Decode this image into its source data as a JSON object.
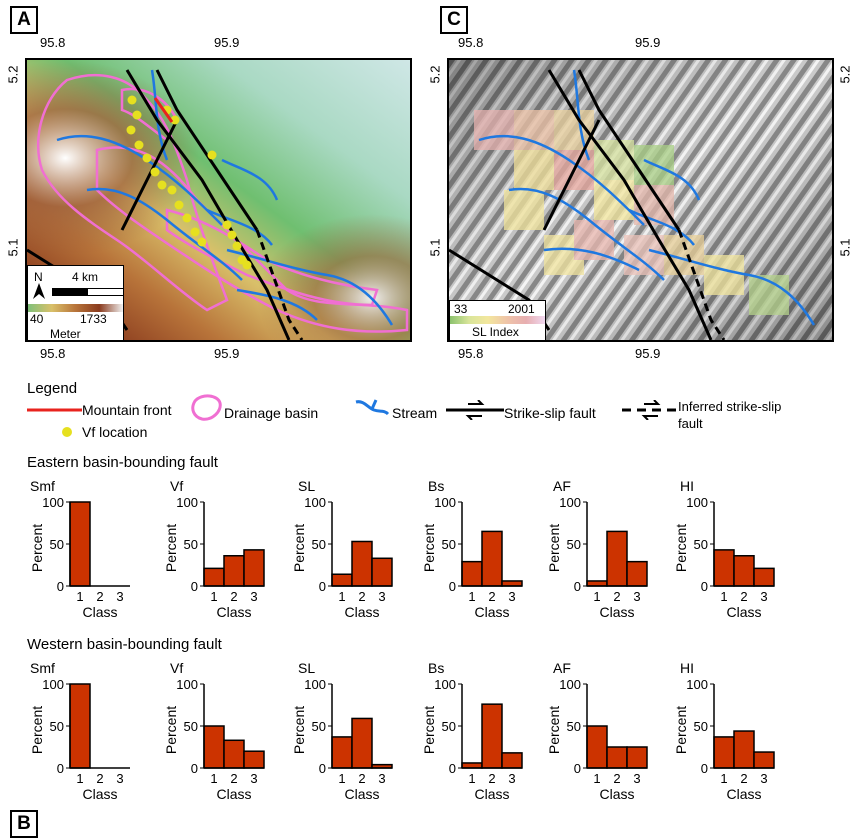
{
  "panels": {
    "a": {
      "letter": "A"
    },
    "c": {
      "letter": "C"
    },
    "b": {
      "letter": "B"
    }
  },
  "map_a": {
    "lon_ticks": [
      "95.8",
      "95.9"
    ],
    "lat_ticks": [
      "5.2",
      "5.1"
    ],
    "north": "N",
    "scale": "4 km",
    "elev_min": "40",
    "elev_max": "1733",
    "elev_unit": "Meter"
  },
  "map_c": {
    "lon_ticks": [
      "95.8",
      "95.9"
    ],
    "lat_ticks": [
      "5.2",
      "5.1"
    ],
    "sl_min": "33",
    "sl_max": "2001",
    "sl_label": "SL Index"
  },
  "legend": {
    "title": "Legend",
    "mountain_front": "Mountain front",
    "vf_location": "Vf location",
    "drainage_basin": "Drainage basin",
    "stream": "Stream",
    "strike_slip": "Strike-slip fault",
    "inferred_line1": "Inferred strike-slip",
    "inferred_line2": "fault"
  },
  "colors": {
    "bar": "#cc3300",
    "mountain_front": "#e8231e",
    "vf": "#e6e01f",
    "basin": "#f06fd2",
    "stream": "#1f78e0"
  },
  "sections": [
    {
      "title": "Eastern basin-bounding fault"
    },
    {
      "title": "Western basin-bounding fault"
    }
  ],
  "chart_data": [
    {
      "type": "bar",
      "group": "Eastern basin-bounding fault",
      "title": "Smf",
      "categories": [
        "1",
        "2",
        "3"
      ],
      "values": [
        100,
        0,
        0
      ],
      "ylim": [
        0,
        100
      ],
      "yticks": [
        "0",
        "50",
        "100"
      ],
      "ylabel": "Percent",
      "xlabel": "Class"
    },
    {
      "type": "bar",
      "group": "Eastern basin-bounding fault",
      "title": "Vf",
      "categories": [
        "1",
        "2",
        "3"
      ],
      "values": [
        21,
        36,
        43
      ],
      "ylim": [
        0,
        100
      ],
      "yticks": [
        "0",
        "50",
        "100"
      ],
      "ylabel": "Percent",
      "xlabel": "Class"
    },
    {
      "type": "bar",
      "group": "Eastern basin-bounding fault",
      "title": "SL",
      "categories": [
        "1",
        "2",
        "3"
      ],
      "values": [
        14,
        53,
        33
      ],
      "ylim": [
        0,
        100
      ],
      "yticks": [
        "0",
        "50",
        "100"
      ],
      "ylabel": "Percent",
      "xlabel": "Class"
    },
    {
      "type": "bar",
      "group": "Eastern basin-bounding fault",
      "title": "Bs",
      "categories": [
        "1",
        "2",
        "3"
      ],
      "values": [
        29,
        65,
        6
      ],
      "ylim": [
        0,
        100
      ],
      "yticks": [
        "0",
        "50",
        "100"
      ],
      "ylabel": "Percent",
      "xlabel": "Class"
    },
    {
      "type": "bar",
      "group": "Eastern basin-bounding fault",
      "title": "AF",
      "categories": [
        "1",
        "2",
        "3"
      ],
      "values": [
        6,
        65,
        29
      ],
      "ylim": [
        0,
        100
      ],
      "yticks": [
        "0",
        "50",
        "100"
      ],
      "ylabel": "Percent",
      "xlabel": "Class"
    },
    {
      "type": "bar",
      "group": "Eastern basin-bounding fault",
      "title": "HI",
      "categories": [
        "1",
        "2",
        "3"
      ],
      "values": [
        43,
        36,
        21
      ],
      "ylim": [
        0,
        100
      ],
      "yticks": [
        "0",
        "50",
        "100"
      ],
      "ylabel": "Percent",
      "xlabel": "Class"
    },
    {
      "type": "bar",
      "group": "Western basin-bounding fault",
      "title": "Smf",
      "categories": [
        "1",
        "2",
        "3"
      ],
      "values": [
        100,
        0,
        0
      ],
      "ylim": [
        0,
        100
      ],
      "yticks": [
        "0",
        "50",
        "100"
      ],
      "ylabel": "Percent",
      "xlabel": "Class"
    },
    {
      "type": "bar",
      "group": "Western basin-bounding fault",
      "title": "Vf",
      "categories": [
        "1",
        "2",
        "3"
      ],
      "values": [
        50,
        33,
        20
      ],
      "ylim": [
        0,
        100
      ],
      "yticks": [
        "0",
        "50",
        "100"
      ],
      "ylabel": "Percent",
      "xlabel": "Class"
    },
    {
      "type": "bar",
      "group": "Western basin-bounding fault",
      "title": "SL",
      "categories": [
        "1",
        "2",
        "3"
      ],
      "values": [
        37,
        59,
        4
      ],
      "ylim": [
        0,
        100
      ],
      "yticks": [
        "0",
        "50",
        "100"
      ],
      "ylabel": "Percent",
      "xlabel": "Class"
    },
    {
      "type": "bar",
      "group": "Western basin-bounding fault",
      "title": "Bs",
      "categories": [
        "1",
        "2",
        "3"
      ],
      "values": [
        6,
        76,
        18
      ],
      "ylim": [
        0,
        100
      ],
      "yticks": [
        "0",
        "50",
        "100"
      ],
      "ylabel": "Percent",
      "xlabel": "Class"
    },
    {
      "type": "bar",
      "group": "Western basin-bounding fault",
      "title": "AF",
      "categories": [
        "1",
        "2",
        "3"
      ],
      "values": [
        50,
        25,
        25
      ],
      "ylim": [
        0,
        100
      ],
      "yticks": [
        "0",
        "50",
        "100"
      ],
      "ylabel": "Percent",
      "xlabel": "Class"
    },
    {
      "type": "bar",
      "group": "Western basin-bounding fault",
      "title": "HI",
      "categories": [
        "1",
        "2",
        "3"
      ],
      "values": [
        37,
        44,
        19
      ],
      "ylim": [
        0,
        100
      ],
      "yticks": [
        "0",
        "50",
        "100"
      ],
      "ylabel": "Percent",
      "xlabel": "Class"
    }
  ]
}
